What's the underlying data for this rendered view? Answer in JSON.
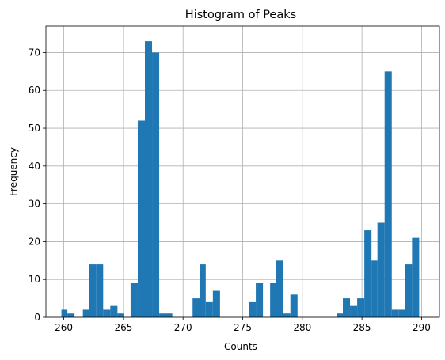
{
  "chart_data": {
    "type": "bar",
    "title": "Histogram of Peaks",
    "xlabel": "Counts",
    "ylabel": "Frequency",
    "xlim": [
      258.5,
      291.5
    ],
    "ylim": [
      0,
      77
    ],
    "xticks": [
      260,
      265,
      270,
      275,
      280,
      285,
      290
    ],
    "yticks": [
      0,
      10,
      20,
      30,
      40,
      50,
      60,
      70
    ],
    "grid": true,
    "legend": "none",
    "bar_color": "#1f77b4",
    "bins": [
      {
        "x0": 259.8,
        "x1": 260.3,
        "value": 2
      },
      {
        "x0": 260.3,
        "x1": 260.9,
        "value": 1
      },
      {
        "x0": 261.6,
        "x1": 262.1,
        "value": 2
      },
      {
        "x0": 262.1,
        "x1": 262.7,
        "value": 14
      },
      {
        "x0": 262.7,
        "x1": 263.3,
        "value": 14
      },
      {
        "x0": 263.3,
        "x1": 263.9,
        "value": 2
      },
      {
        "x0": 263.9,
        "x1": 264.5,
        "value": 3
      },
      {
        "x0": 264.5,
        "x1": 265.0,
        "value": 1
      },
      {
        "x0": 265.6,
        "x1": 266.2,
        "value": 9
      },
      {
        "x0": 266.2,
        "x1": 266.8,
        "value": 52
      },
      {
        "x0": 266.8,
        "x1": 267.4,
        "value": 73
      },
      {
        "x0": 267.4,
        "x1": 268.0,
        "value": 70
      },
      {
        "x0": 268.0,
        "x1": 268.5,
        "value": 1
      },
      {
        "x0": 268.5,
        "x1": 269.1,
        "value": 1
      },
      {
        "x0": 270.8,
        "x1": 271.4,
        "value": 5
      },
      {
        "x0": 271.4,
        "x1": 271.9,
        "value": 14
      },
      {
        "x0": 271.9,
        "x1": 272.5,
        "value": 4
      },
      {
        "x0": 272.5,
        "x1": 273.1,
        "value": 7
      },
      {
        "x0": 275.5,
        "x1": 276.1,
        "value": 4
      },
      {
        "x0": 276.1,
        "x1": 276.7,
        "value": 9
      },
      {
        "x0": 277.3,
        "x1": 277.8,
        "value": 9
      },
      {
        "x0": 277.8,
        "x1": 278.4,
        "value": 15
      },
      {
        "x0": 278.4,
        "x1": 279.0,
        "value": 1
      },
      {
        "x0": 279.0,
        "x1": 279.6,
        "value": 6
      },
      {
        "x0": 282.9,
        "x1": 283.4,
        "value": 1
      },
      {
        "x0": 283.4,
        "x1": 284.0,
        "value": 5
      },
      {
        "x0": 284.0,
        "x1": 284.6,
        "value": 3
      },
      {
        "x0": 284.6,
        "x1": 285.2,
        "value": 5
      },
      {
        "x0": 285.2,
        "x1": 285.8,
        "value": 23
      },
      {
        "x0": 285.8,
        "x1": 286.3,
        "value": 15
      },
      {
        "x0": 286.3,
        "x1": 286.9,
        "value": 25
      },
      {
        "x0": 286.9,
        "x1": 287.5,
        "value": 65
      },
      {
        "x0": 287.5,
        "x1": 288.1,
        "value": 2
      },
      {
        "x0": 288.1,
        "x1": 288.6,
        "value": 2
      },
      {
        "x0": 288.6,
        "x1": 289.2,
        "value": 14
      },
      {
        "x0": 289.2,
        "x1": 289.8,
        "value": 21
      }
    ]
  }
}
